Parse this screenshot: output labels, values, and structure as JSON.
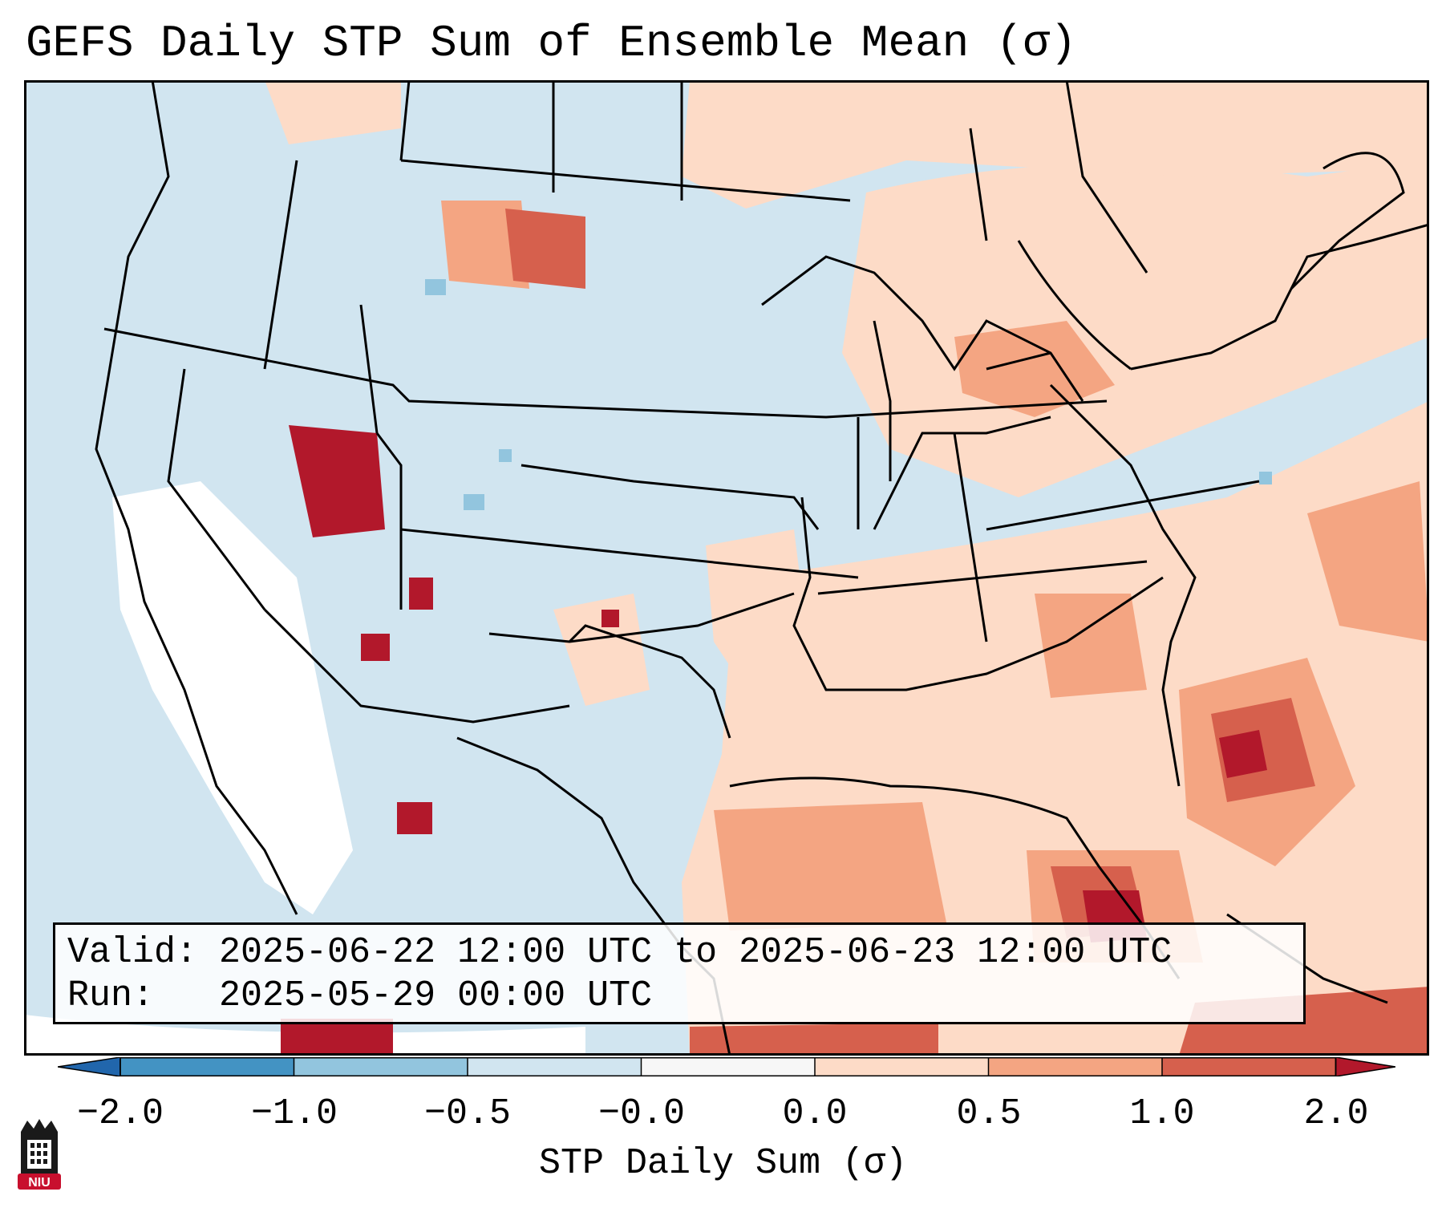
{
  "title": "GEFS Daily STP Sum of Ensemble Mean (σ)",
  "info": {
    "valid_text": "Valid: 2025-06-22 12:00 UTC to 2025-06-23 12:00 UTC",
    "run_text": "Run:   2025-05-29 00:00 UTC"
  },
  "colorbar": {
    "label": "STP Daily Sum (σ)",
    "ticks": [
      "−2.0",
      "−1.0",
      "−0.5",
      "−0.0",
      "0.0",
      "0.5",
      "1.0",
      "2.0"
    ],
    "bins": [
      {
        "range": "-2.0 to -1.0",
        "color": "#4393c3"
      },
      {
        "range": "-1.0 to -0.5",
        "color": "#92c5de"
      },
      {
        "range": "-0.5 to -0.0",
        "color": "#d1e5f0"
      },
      {
        "range": "-0.0 to 0.0",
        "color": "#f7f7f7"
      },
      {
        "range": "0.0 to 0.5",
        "color": "#fddbc7"
      },
      {
        "range": "0.5 to 1.0",
        "color": "#f4a582"
      },
      {
        "range": "1.0 to 2.0",
        "color": "#d6604d"
      }
    ],
    "under_color": "#2166ac",
    "over_color": "#b2182b"
  },
  "map_colors": {
    "background": "#d1e5f0",
    "neutral": "#ffffff",
    "light_pos": "#fddbc7",
    "mid_pos": "#f4a582",
    "strong_pos": "#d6604d",
    "extreme_pos": "#b2182b",
    "light_neg": "#92c5de"
  },
  "logo": {
    "text": "NIU",
    "icon": "niu-building-icon"
  }
}
